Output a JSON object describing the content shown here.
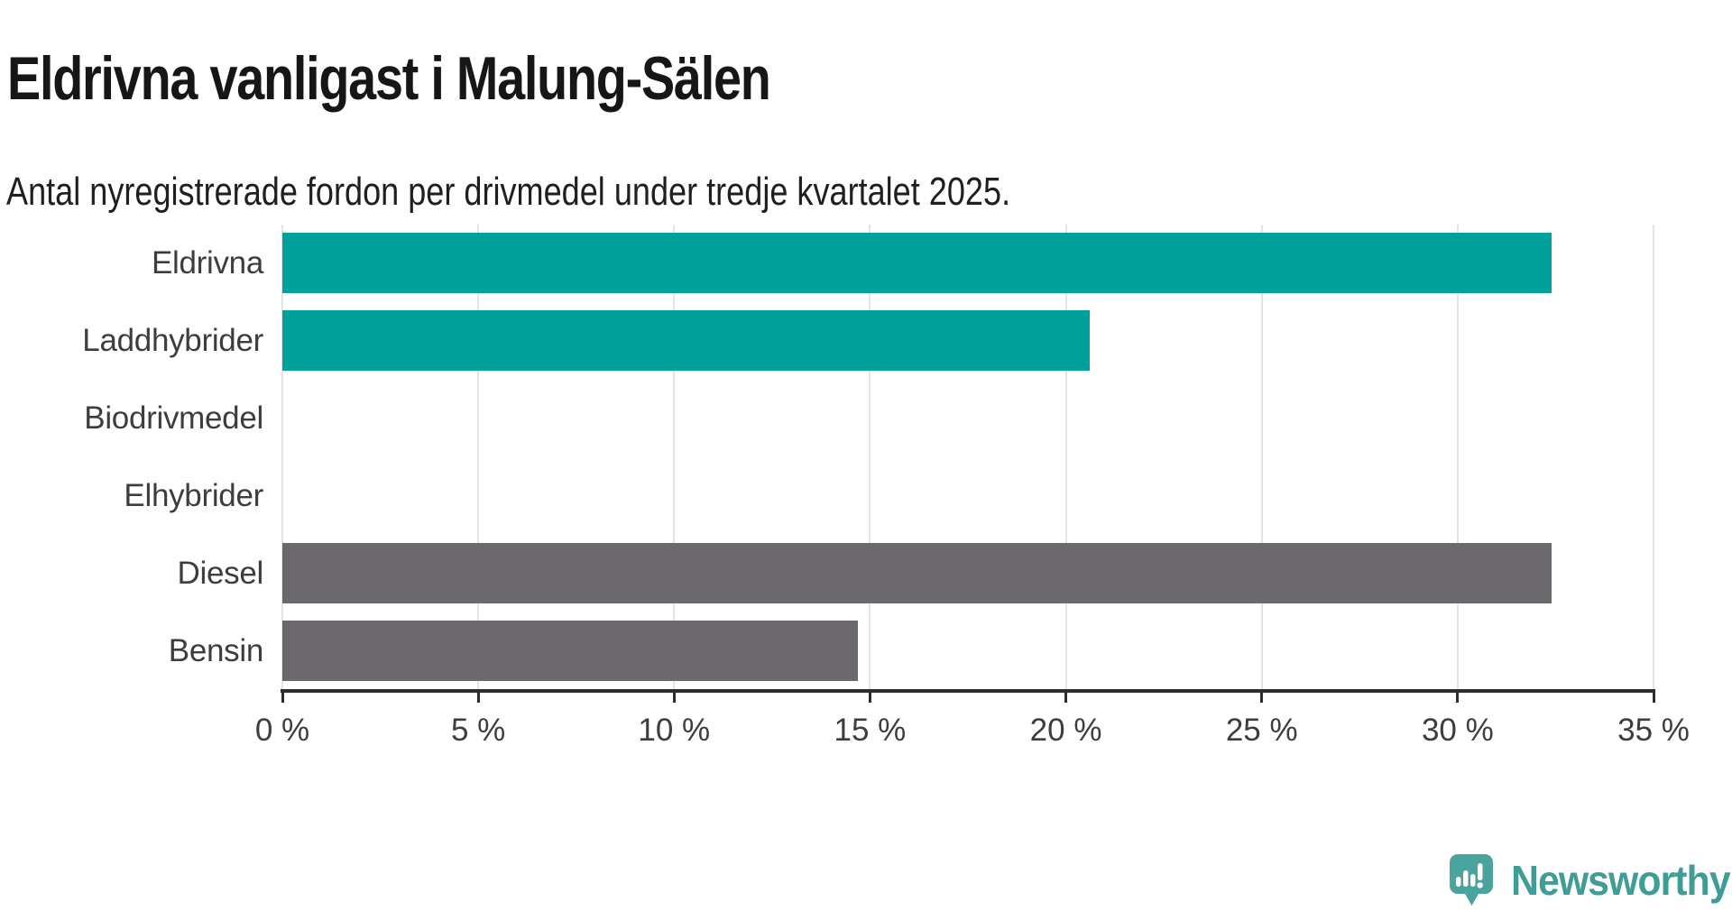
{
  "chart_data": {
    "type": "bar",
    "orientation": "horizontal",
    "title": "Eldrivna vanligast i Malung-Sälen",
    "subtitle": "Antal nyregistrerade fordon per drivmedel under tredje kvartalet 2025.",
    "categories": [
      "Eldrivna",
      "Laddhybrider",
      "Biodrivmedel",
      "Elhybrider",
      "Diesel",
      "Bensin"
    ],
    "values": [
      32.4,
      20.6,
      0,
      0,
      32.4,
      14.7
    ],
    "value_unit": "%",
    "xlim": [
      0,
      35
    ],
    "x_ticks": [
      0,
      5,
      10,
      15,
      20,
      25,
      30,
      35
    ],
    "x_tick_labels": [
      "0 %",
      "5 %",
      "10 %",
      "15 %",
      "20 %",
      "25 %",
      "30 %",
      "35 %"
    ],
    "bar_colors": [
      "#00a19a",
      "#00a19a",
      "#00a19a",
      "#00a19a",
      "#6b696e",
      "#6b696e"
    ],
    "grid": "vertical-light",
    "legend": "none"
  },
  "colors": {
    "teal_bar": "#00a19a",
    "gray_bar": "#6b696e",
    "gridline": "#e4e4e4",
    "axis": "#2d2d2d",
    "title_text": "#161616",
    "label_text": "#3d3d3d",
    "logo_teal": "#4aa39c",
    "logo_text_teal": "#3f9d96"
  },
  "branding": {
    "logo_text": "Newsworthy",
    "logo_icon": "newsworthy-speech-bubble-bar-chart-icon"
  }
}
